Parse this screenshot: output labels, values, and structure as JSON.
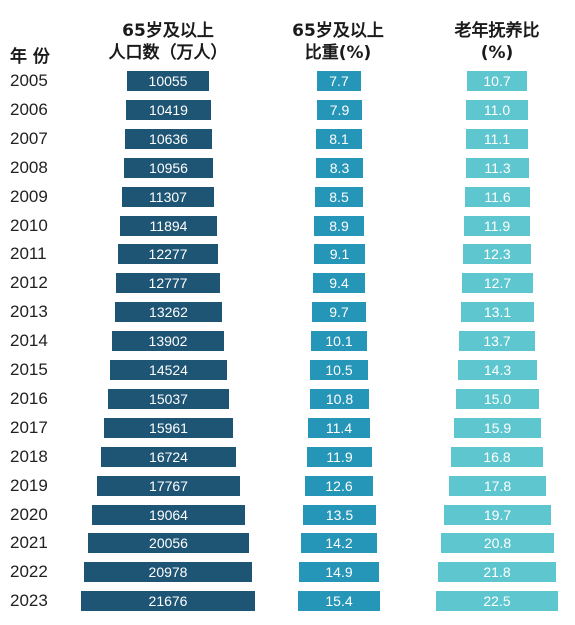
{
  "headers": {
    "year": "年 份",
    "population": [
      "65岁及以上",
      "人口数（万人）"
    ],
    "share": [
      "65岁及以上",
      "比重(%)"
    ],
    "dependency": [
      "老年抚养比",
      "(%)"
    ]
  },
  "colors": {
    "population": "#1e5574",
    "share": "#2596b8",
    "dependency": "#5ec6cf"
  },
  "chart_data": {
    "type": "table",
    "columns": [
      "年 份",
      "65岁及以上人口数（万人）",
      "65岁及以上比重(%)",
      "老年抚养比(%)"
    ],
    "rows": [
      {
        "year": "2005",
        "population": "10055",
        "share": "7.7",
        "dependency": "10.7"
      },
      {
        "year": "2006",
        "population": "10419",
        "share": "7.9",
        "dependency": "11.0"
      },
      {
        "year": "2007",
        "population": "10636",
        "share": "8.1",
        "dependency": "11.1"
      },
      {
        "year": "2008",
        "population": "10956",
        "share": "8.3",
        "dependency": "11.3"
      },
      {
        "year": "2009",
        "population": "11307",
        "share": "8.5",
        "dependency": "11.6"
      },
      {
        "year": "2010",
        "population": "11894",
        "share": "8.9",
        "dependency": "11.9"
      },
      {
        "year": "2011",
        "population": "12277",
        "share": "9.1",
        "dependency": "12.3"
      },
      {
        "year": "2012",
        "population": "12777",
        "share": "9.4",
        "dependency": "12.7"
      },
      {
        "year": "2013",
        "population": "13262",
        "share": "9.7",
        "dependency": "13.1"
      },
      {
        "year": "2014",
        "population": "13902",
        "share": "10.1",
        "dependency": "13.7"
      },
      {
        "year": "2015",
        "population": "14524",
        "share": "10.5",
        "dependency": "14.3"
      },
      {
        "year": "2016",
        "population": "15037",
        "share": "10.8",
        "dependency": "15.0"
      },
      {
        "year": "2017",
        "population": "15961",
        "share": "11.4",
        "dependency": "15.9"
      },
      {
        "year": "2018",
        "population": "16724",
        "share": "11.9",
        "dependency": "16.8"
      },
      {
        "year": "2019",
        "population": "17767",
        "share": "12.6",
        "dependency": "17.8"
      },
      {
        "year": "2020",
        "population": "19064",
        "share": "13.5",
        "dependency": "19.7"
      },
      {
        "year": "2021",
        "population": "20056",
        "share": "14.2",
        "dependency": "20.8"
      },
      {
        "year": "2022",
        "population": "20978",
        "share": "14.9",
        "dependency": "21.8"
      },
      {
        "year": "2023",
        "population": "21676",
        "share": "15.4",
        "dependency": "22.5"
      }
    ]
  }
}
